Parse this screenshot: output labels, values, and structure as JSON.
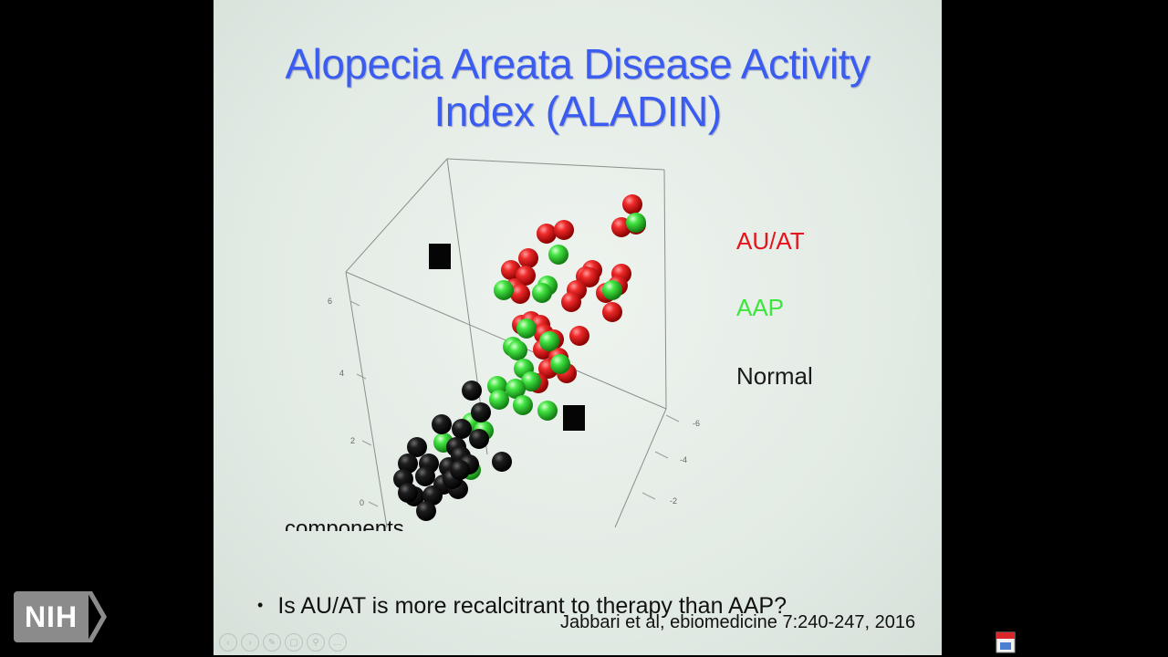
{
  "slide": {
    "title_line1": "Alopecia Areata Disease Activity",
    "title_line2": "Index (ALADIN)",
    "occluded_text": "components",
    "bullet": "Is AU/AT is more recalcitrant to therapy than AAP?",
    "citation": "Jabbari et al, ebiomedicine 7:240-247, 2016"
  },
  "legend": [
    {
      "label": "AU/AT",
      "color": "#e3141b"
    },
    {
      "label": "AAP",
      "color": "#3ce63c"
    },
    {
      "label": "Normal",
      "color": "#1a1a1a"
    }
  ],
  "plot": {
    "z_ticks": [
      "0",
      "2",
      "4",
      "6"
    ],
    "depth_ticks": [
      "-6",
      "-4",
      "-2"
    ]
  },
  "toolbar": {
    "icons": [
      "prev-icon",
      "next-icon",
      "pen-icon",
      "slides-icon",
      "zoom-icon",
      "more-icon"
    ],
    "glyphs": [
      "‹",
      "›",
      "✎",
      "▢",
      "⚲",
      "…"
    ]
  },
  "logo": {
    "text": "NIH",
    "color": "#8b8b8b"
  }
}
